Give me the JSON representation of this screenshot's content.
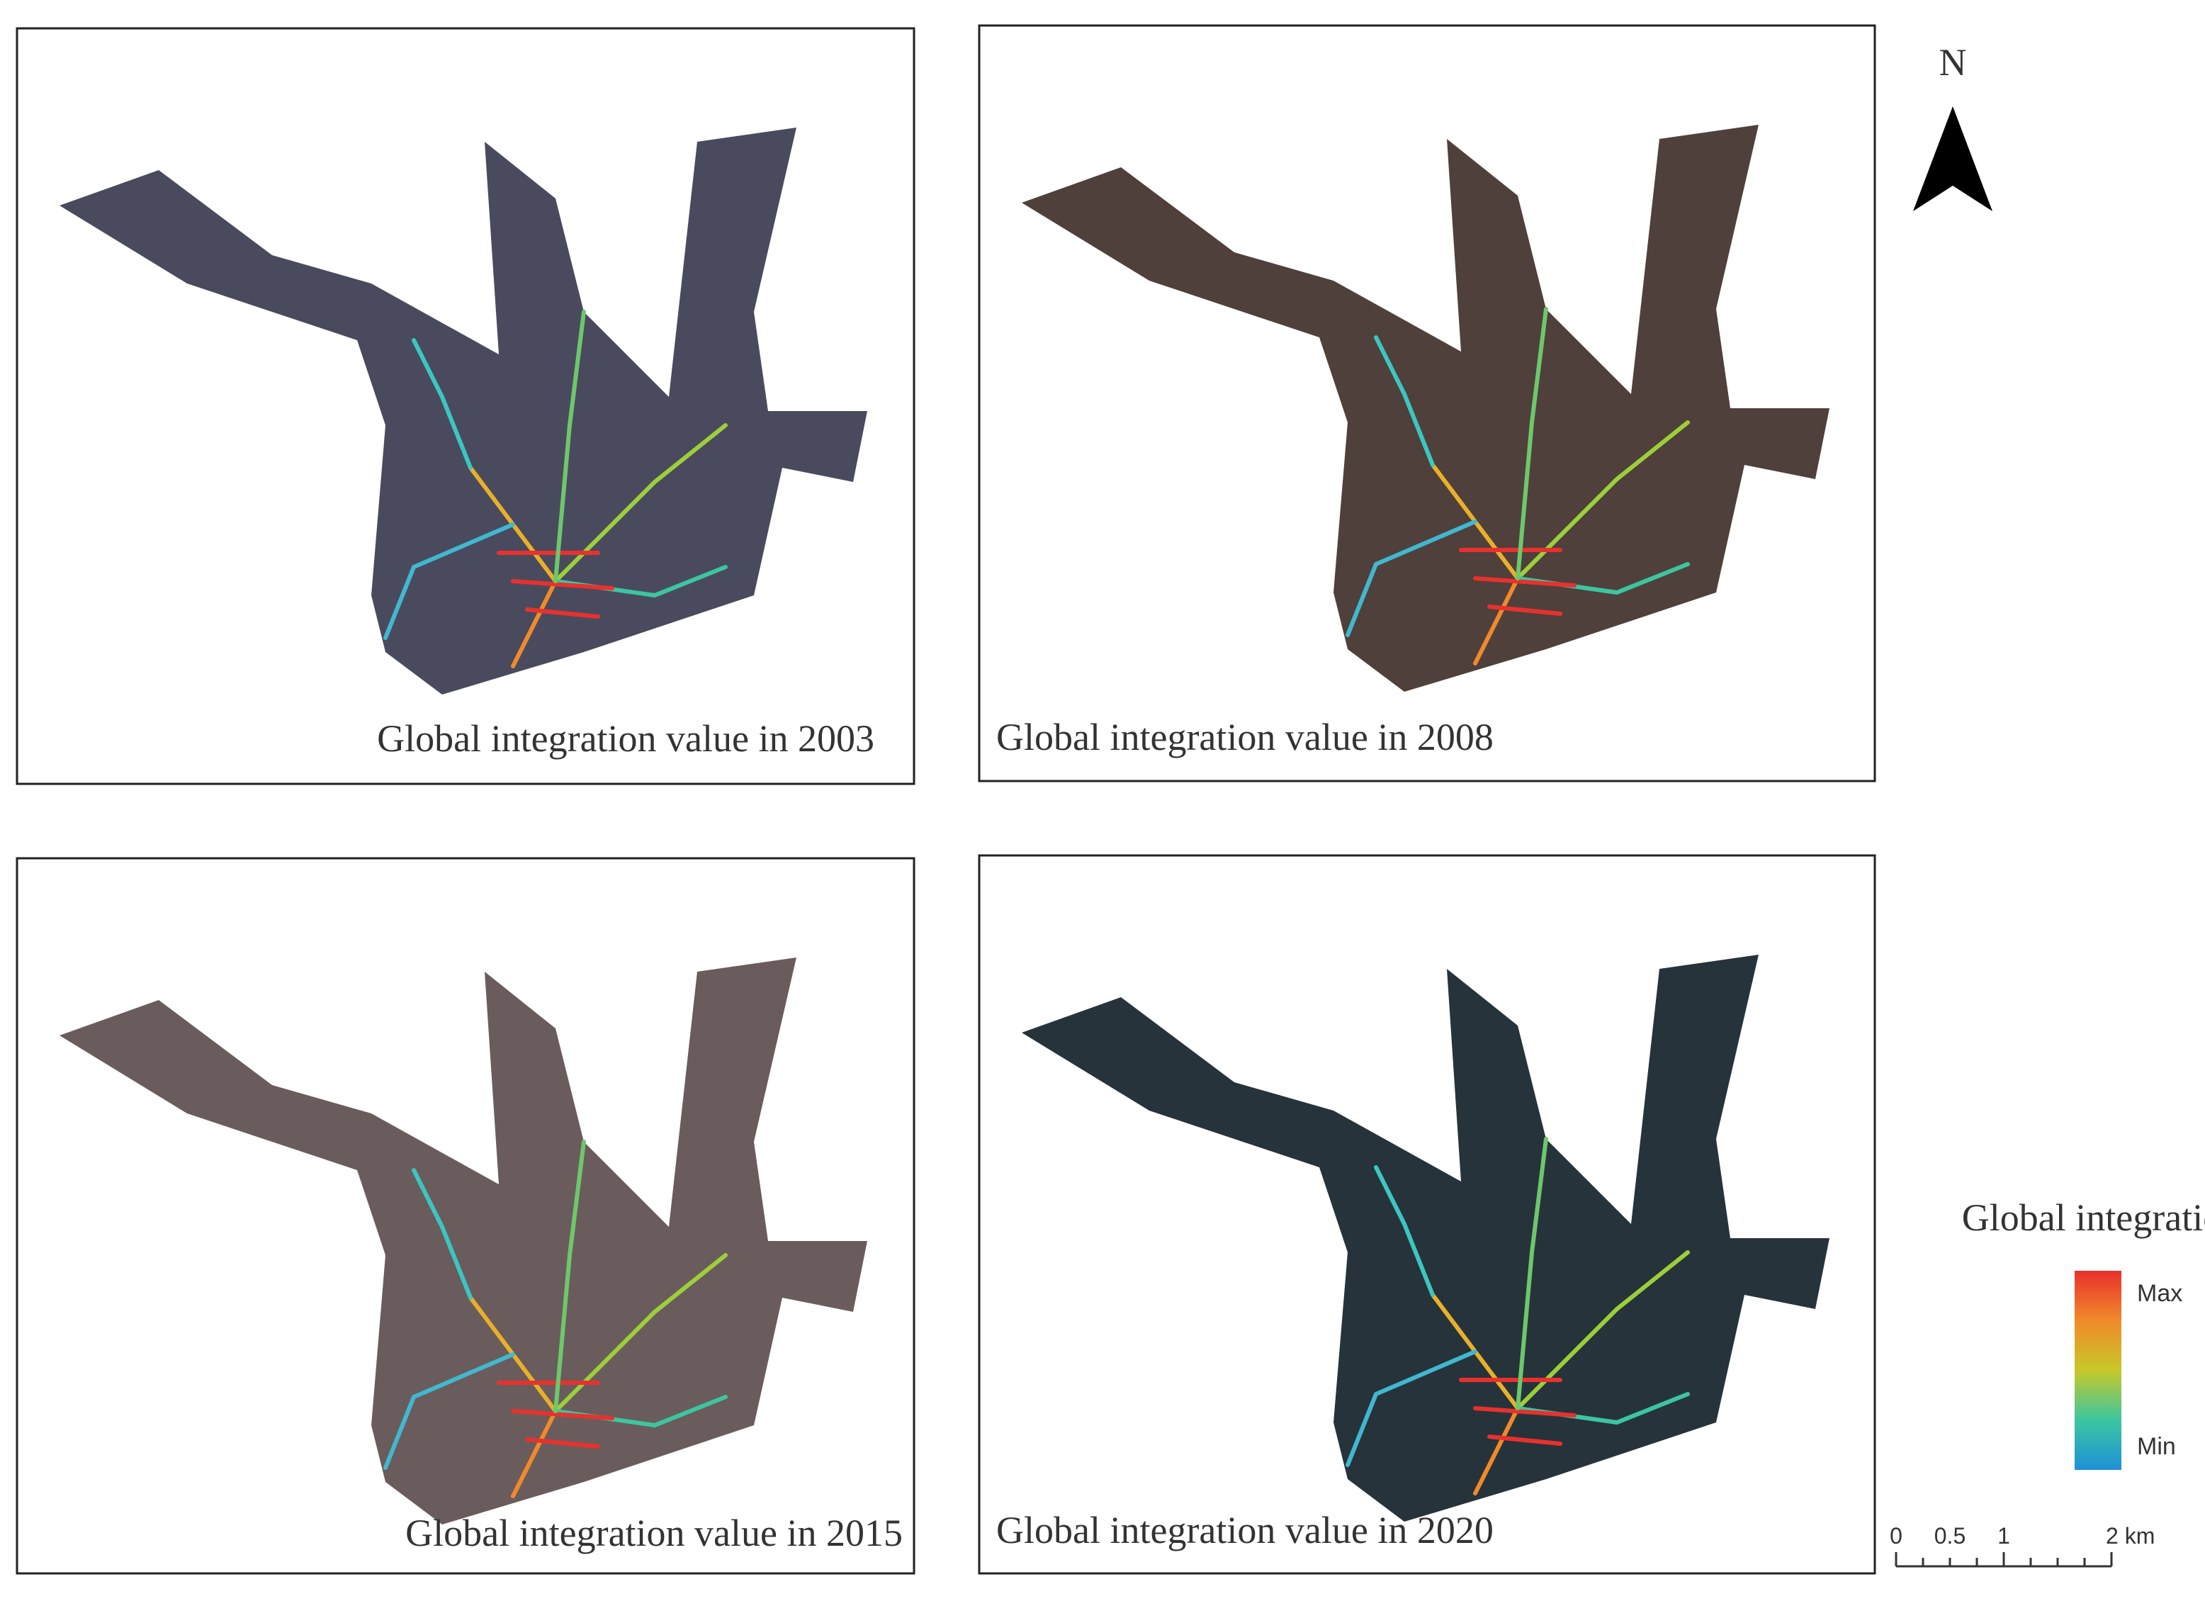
{
  "panels": [
    {
      "caption": "Global  integration value in 2003"
    },
    {
      "caption": "Global  integration value in 2008"
    },
    {
      "caption": "Global  integration value in 2015"
    },
    {
      "caption": "Global  integration value in 2020"
    }
  ],
  "north_arrow": {
    "label": "N"
  },
  "legend": {
    "title": "Global  integration",
    "max_label": "Max",
    "min_label": "Min"
  },
  "scale_bar": {
    "labels": [
      "0",
      "0.5",
      "1",
      "2 km"
    ]
  }
}
